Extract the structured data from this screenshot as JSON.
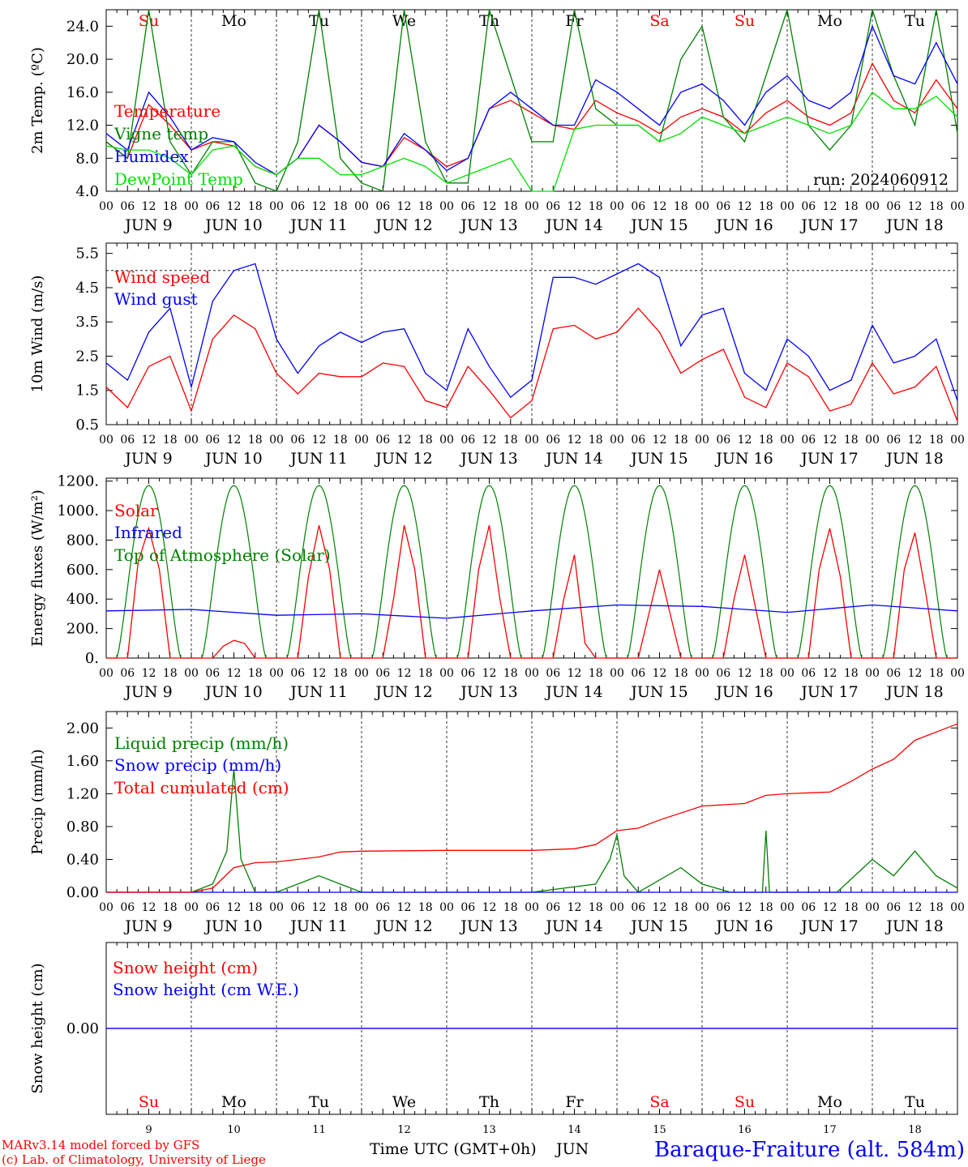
{
  "run_label": "run: 2024060912",
  "footer": {
    "model": "MARv3.14 model forced by GFS",
    "copyright": "(c) Lab. of Climatology, University of Liege",
    "time_label": "Time UTC (GMT+0h)",
    "month": "JUN",
    "station": "Baraque-Fraiture (alt. 584m)"
  },
  "colors": {
    "red": "#ff0000",
    "green": "#008000",
    "blue": "#0000ff",
    "light_green": "#00e000",
    "purple": "#800080"
  },
  "days": {
    "weekdays": [
      "Su",
      "Mo",
      "Tu",
      "We",
      "Th",
      "Fr",
      "Sa",
      "Su",
      "Mo",
      "Tu"
    ],
    "weekday_colors": [
      "#ff0000",
      "#000000",
      "#000000",
      "#000000",
      "#000000",
      "#000000",
      "#ff0000",
      "#ff0000",
      "#000000",
      "#000000"
    ],
    "dates": [
      "JUN  9",
      "JUN 10",
      "JUN 11",
      "JUN 12",
      "JUN 13",
      "JUN 14",
      "JUN 15",
      "JUN 16",
      "JUN 17",
      "JUN 18"
    ],
    "day_numbers": [
      "9",
      "10",
      "11",
      "12",
      "13",
      "14",
      "15",
      "16",
      "17",
      "18"
    ],
    "hour_ticks": [
      "00",
      "06",
      "12",
      "18"
    ],
    "final_hour": "00"
  },
  "chart_data": [
    {
      "type": "line",
      "ylabel": "2m Temp. (ºC)",
      "ylim": [
        4,
        26
      ],
      "yticks": [
        "4.0",
        "8.0",
        "12.0",
        "16.0",
        "20.0",
        "24.0"
      ],
      "x_unit": "hours since JUN 9 00 UTC",
      "series": [
        {
          "name": "Temperature",
          "color": "#ff0000",
          "x": [
            0,
            6,
            12,
            18,
            24,
            30,
            36,
            42,
            48,
            54,
            60,
            66,
            72,
            78,
            84,
            90,
            96,
            102,
            108,
            114,
            120,
            126,
            132,
            138,
            144,
            150,
            156,
            162,
            168,
            174,
            180,
            186,
            192,
            198,
            204,
            210,
            216,
            222,
            228,
            234,
            240
          ],
          "y": [
            10,
            8,
            14.5,
            12,
            9,
            10,
            9.5,
            7,
            6,
            8,
            12,
            10,
            7.5,
            7,
            10.5,
            9,
            7,
            8,
            14,
            15,
            13.5,
            12,
            11.5,
            15,
            13.5,
            12.5,
            11,
            13,
            14,
            13,
            11,
            13.5,
            15,
            13,
            12,
            13.5,
            19.5,
            15,
            13.5,
            17.5,
            14
          ]
        },
        {
          "name": "Vigne temp",
          "color": "#008000",
          "x": [
            0,
            6,
            12,
            18,
            24,
            30,
            36,
            42,
            48,
            54,
            60,
            66,
            72,
            78,
            84,
            90,
            96,
            102,
            108,
            114,
            120,
            126,
            132,
            138,
            144,
            150,
            156,
            162,
            168,
            174,
            180,
            186,
            192,
            198,
            204,
            210,
            216,
            222,
            228,
            234,
            240
          ],
          "y": [
            10,
            8,
            26,
            10,
            6,
            10,
            10,
            5,
            4,
            10,
            26,
            8,
            5,
            4,
            26,
            10,
            5,
            5,
            26,
            18,
            10,
            10,
            26,
            14,
            12,
            12,
            10,
            20,
            24,
            13,
            10,
            18,
            26,
            12,
            9,
            12,
            26,
            18,
            12,
            26,
            11
          ]
        },
        {
          "name": "Humidex",
          "color": "#0000ff",
          "x": [
            0,
            6,
            12,
            18,
            24,
            30,
            36,
            42,
            48,
            54,
            60,
            66,
            72,
            78,
            84,
            90,
            96,
            102,
            108,
            114,
            120,
            126,
            132,
            138,
            144,
            150,
            156,
            162,
            168,
            174,
            180,
            186,
            192,
            198,
            204,
            210,
            216,
            222,
            228,
            234,
            240
          ],
          "y": [
            11,
            9,
            16,
            13,
            9,
            10.5,
            10,
            7.5,
            6,
            8,
            12,
            10,
            7.5,
            7,
            11,
            9,
            6.5,
            8,
            14,
            16,
            14,
            12,
            12,
            17.5,
            16,
            14,
            12,
            16,
            17,
            15,
            12,
            16,
            18,
            15,
            14,
            16,
            24,
            18,
            17,
            22,
            17
          ]
        },
        {
          "name": "DewPoint Temp",
          "color": "#00e000",
          "x": [
            0,
            6,
            12,
            18,
            24,
            30,
            36,
            42,
            48,
            54,
            60,
            66,
            72,
            78,
            84,
            90,
            96,
            102,
            108,
            114,
            120,
            126,
            132,
            138,
            144,
            150,
            156,
            162,
            168,
            174,
            180,
            186,
            192,
            198,
            204,
            210,
            216,
            222,
            228,
            234,
            240
          ],
          "y": [
            9.5,
            9,
            9,
            8,
            6,
            9,
            9.5,
            7,
            6,
            8,
            8,
            6,
            6,
            7,
            8,
            7,
            5,
            6,
            7,
            8,
            4,
            4,
            11.5,
            12,
            12,
            12,
            10,
            11,
            13,
            12,
            11,
            12,
            13,
            12,
            11,
            12,
            16,
            14,
            14,
            15.5,
            13
          ]
        }
      ]
    },
    {
      "type": "line",
      "ylabel": "10m Wind (m/s)",
      "ylim": [
        0.5,
        5.8
      ],
      "yticks": [
        "0.5",
        "1.5",
        "2.5",
        "3.5",
        "4.5",
        "5.5"
      ],
      "x_unit": "hours since JUN 9 00 UTC",
      "series": [
        {
          "name": "Wind speed",
          "color": "#ff0000",
          "x": [
            0,
            6,
            12,
            18,
            24,
            30,
            36,
            42,
            48,
            54,
            60,
            66,
            72,
            78,
            84,
            90,
            96,
            102,
            108,
            114,
            120,
            126,
            132,
            138,
            144,
            150,
            156,
            162,
            168,
            174,
            180,
            186,
            192,
            198,
            204,
            210,
            216,
            222,
            228,
            234,
            240
          ],
          "y": [
            1.6,
            1.0,
            2.2,
            2.5,
            0.9,
            3.0,
            3.7,
            3.3,
            2.0,
            1.4,
            2.0,
            1.9,
            1.9,
            2.3,
            2.2,
            1.2,
            1.0,
            2.2,
            1.5,
            0.7,
            1.2,
            3.3,
            3.4,
            3.0,
            3.2,
            3.9,
            3.2,
            2.0,
            2.4,
            2.7,
            1.3,
            1.0,
            2.3,
            1.9,
            0.9,
            1.1,
            2.3,
            1.4,
            1.6,
            2.2,
            0.6
          ]
        },
        {
          "name": "Wind gust",
          "color": "#0000ff",
          "x": [
            0,
            6,
            12,
            18,
            24,
            30,
            36,
            42,
            48,
            54,
            60,
            66,
            72,
            78,
            84,
            90,
            96,
            102,
            108,
            114,
            120,
            126,
            132,
            138,
            144,
            150,
            156,
            162,
            168,
            174,
            180,
            186,
            192,
            198,
            204,
            210,
            216,
            222,
            228,
            234,
            240
          ],
          "y": [
            2.3,
            1.8,
            3.2,
            3.9,
            1.6,
            4.1,
            5.0,
            5.2,
            3.0,
            2.0,
            2.8,
            3.2,
            2.9,
            3.2,
            3.3,
            2.0,
            1.5,
            3.3,
            2.2,
            1.3,
            1.8,
            4.8,
            4.8,
            4.6,
            4.9,
            5.2,
            4.8,
            2.8,
            3.7,
            3.9,
            2.0,
            1.5,
            3.0,
            2.5,
            1.5,
            1.8,
            3.4,
            2.3,
            2.5,
            3.0,
            1.2
          ]
        }
      ]
    },
    {
      "type": "line",
      "ylabel": "Energy fluxes (W/m²)",
      "ylim": [
        0,
        1220
      ],
      "yticks": [
        "0.",
        "200.",
        "400.",
        "600.",
        "800.",
        "1000.",
        "1200."
      ],
      "x_unit": "hours since JUN 9 00 UTC",
      "toa_peak": 1170,
      "series": [
        {
          "name": "Solar",
          "color": "#ff0000",
          "x": [
            0,
            6,
            9,
            12,
            15,
            18,
            24,
            30,
            33,
            36,
            39,
            42,
            48,
            54,
            57,
            60,
            63,
            66,
            72,
            78,
            81,
            84,
            87,
            90,
            96,
            102,
            105,
            108,
            111,
            114,
            120,
            126,
            129,
            132,
            135,
            138,
            144,
            150,
            153,
            156,
            159,
            162,
            168,
            174,
            177,
            180,
            183,
            186,
            192,
            198,
            201,
            204,
            207,
            210,
            216,
            222,
            225,
            228,
            231,
            234,
            240
          ],
          "y": [
            0,
            0,
            650,
            880,
            600,
            0,
            0,
            0,
            80,
            120,
            100,
            0,
            0,
            0,
            550,
            900,
            600,
            0,
            0,
            0,
            400,
            900,
            600,
            0,
            0,
            0,
            600,
            900,
            400,
            0,
            0,
            0,
            400,
            700,
            100,
            0,
            0,
            0,
            300,
            600,
            300,
            0,
            0,
            0,
            400,
            700,
            350,
            0,
            0,
            0,
            600,
            880,
            550,
            0,
            0,
            0,
            600,
            850,
            450,
            0,
            0
          ]
        },
        {
          "name": "Infrared",
          "color": "#0000ff",
          "x": [
            0,
            24,
            48,
            72,
            96,
            120,
            144,
            168,
            192,
            216,
            240
          ],
          "y": [
            320,
            330,
            290,
            300,
            270,
            320,
            360,
            350,
            310,
            360,
            320
          ]
        },
        {
          "name": "Top of Atmosphere (Solar)",
          "color": "#008000"
        }
      ]
    },
    {
      "type": "line",
      "ylabel": "Precip (mm/h)",
      "ylim": [
        0,
        2.2
      ],
      "yticks": [
        "0.00",
        "0.40",
        "0.80",
        "1.20",
        "1.60",
        "2.00"
      ],
      "x_unit": "hours since JUN 9 00 UTC",
      "series": [
        {
          "name": "Liquid precip (mm/h)",
          "color": "#008000",
          "x": [
            0,
            24,
            30,
            34,
            36,
            38,
            42,
            48,
            60,
            66,
            72,
            96,
            120,
            138,
            142,
            144,
            146,
            150,
            162,
            168,
            176,
            180,
            185,
            186,
            187,
            192,
            198,
            206,
            216,
            222,
            228,
            234,
            240
          ],
          "y": [
            0,
            0,
            0.1,
            0.5,
            1.5,
            0.4,
            0,
            0,
            0.2,
            0.1,
            0,
            0,
            0,
            0.1,
            0.4,
            0.7,
            0.2,
            0,
            0.3,
            0.1,
            0,
            0,
            0,
            0.75,
            0,
            0,
            0,
            0,
            0.4,
            0.2,
            0.5,
            0.2,
            0.05
          ]
        },
        {
          "name": "Snow precip (mm/h)",
          "color": "#0000ff",
          "x": [
            0,
            240
          ],
          "y": [
            0,
            0
          ]
        },
        {
          "name": "Total cumulated (cm)",
          "color": "#ff0000",
          "x": [
            0,
            24,
            30,
            36,
            42,
            48,
            60,
            66,
            72,
            96,
            120,
            132,
            138,
            144,
            150,
            156,
            168,
            180,
            186,
            192,
            204,
            210,
            216,
            222,
            228,
            234,
            240
          ],
          "y": [
            0,
            0,
            0.05,
            0.3,
            0.36,
            0.37,
            0.43,
            0.49,
            0.5,
            0.51,
            0.51,
            0.53,
            0.58,
            0.75,
            0.78,
            0.88,
            1.05,
            1.08,
            1.18,
            1.2,
            1.22,
            1.35,
            1.5,
            1.62,
            1.85,
            1.95,
            2.05
          ]
        }
      ]
    },
    {
      "type": "line",
      "ylabel": "Snow height (cm)",
      "ylim": [
        -1,
        1
      ],
      "yticks": [
        "0.00"
      ],
      "x_unit": "hours since JUN 9 00 UTC",
      "series": [
        {
          "name": "Snow height (cm)",
          "color": "#ff0000",
          "x": [
            0,
            240
          ],
          "y": [
            0,
            0
          ]
        },
        {
          "name": "Snow height (cm W.E.)",
          "color": "#0000ff",
          "x": [
            0,
            240
          ],
          "y": [
            0,
            0
          ]
        }
      ]
    }
  ]
}
